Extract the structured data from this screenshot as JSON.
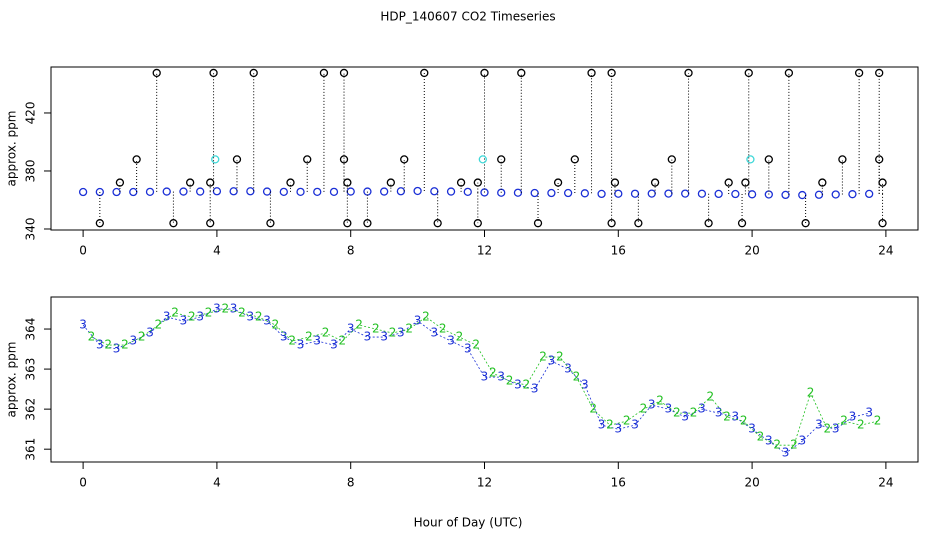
{
  "chart_data": [
    {
      "type": "scatter",
      "title": "HDP_140607  CO2 Timeseries",
      "ylabel": "approx. ppm",
      "xlim": [
        -0.96,
        24.96
      ],
      "ylim": [
        339.3,
        451.7
      ],
      "xticks": [
        0,
        4,
        8,
        12,
        16,
        20,
        24
      ],
      "yticks": [
        340,
        380,
        420
      ],
      "series": [
        {
          "color": "#1a2fd6",
          "marker": "circle",
          "x": [
            0,
            0.5,
            1,
            1.5,
            2,
            2.5,
            3,
            3.5,
            4,
            4.5,
            5,
            5.5,
            6,
            6.5,
            7,
            7.5,
            8,
            8.5,
            9,
            9.5,
            10,
            10.5,
            11,
            11.5,
            12,
            12.5,
            13,
            13.5,
            14,
            14.5,
            15,
            15.5,
            16,
            16.5,
            17,
            17.5,
            18,
            18.5,
            19,
            19.5,
            20,
            20.5,
            21,
            21.5,
            22,
            22.5,
            23,
            23.5
          ],
          "values": [
            365.5,
            365.5,
            365.5,
            365.5,
            365.6,
            365.8,
            365.8,
            365.8,
            366,
            366,
            366,
            365.8,
            365.6,
            365.6,
            365.6,
            365.6,
            365.8,
            365.8,
            365.8,
            366,
            366.2,
            366,
            365.8,
            365.6,
            365.2,
            365,
            365,
            364.8,
            364.8,
            364.8,
            364.6,
            364.2,
            364.3,
            364.3,
            364.4,
            364.4,
            364.4,
            364.3,
            364.2,
            364.1,
            363.9,
            363.8,
            363.5,
            363.4,
            363.6,
            363.8,
            364,
            364.2
          ]
        },
        {
          "color": "#000000",
          "marker": "ring",
          "x": [
            2.2,
            3.9,
            5.1,
            7.2,
            7.8,
            10.2,
            12.0,
            13.1,
            15.2,
            15.8,
            18.1,
            19.9,
            21.1,
            23.2,
            23.8,
            0.5,
            2.7,
            3.8,
            5.6,
            7.9,
            8.5,
            10.6,
            11.8,
            13.6,
            15.8,
            16.6,
            18.7,
            19.7,
            21.6,
            23.9,
            1.6,
            4.6,
            6.7,
            7.8,
            9.6,
            12.5,
            14.7,
            17.6,
            20.5,
            22.7,
            23.8,
            1.1,
            3.2,
            3.8,
            6.2,
            7.9,
            9.2,
            11.3,
            11.8,
            14.2,
            15.9,
            17.1,
            19.3,
            19.8,
            22.1,
            23.9
          ],
          "values": [
            447.6,
            447.6,
            447.6,
            447.6,
            447.6,
            447.6,
            447.6,
            447.6,
            447.6,
            447.6,
            447.6,
            447.6,
            447.6,
            447.6,
            447.6,
            344,
            344,
            344,
            344,
            344,
            344,
            344,
            344,
            344,
            344,
            344,
            344,
            344,
            344,
            344,
            388,
            388,
            388,
            388,
            388,
            388,
            388,
            388,
            388,
            388,
            388,
            372,
            372,
            372,
            372,
            372,
            372,
            372,
            372,
            372,
            372,
            372,
            372,
            372,
            372,
            372
          ]
        },
        {
          "color": "#3fd8d8",
          "marker": "circle",
          "x": [
            3.95,
            11.95,
            19.95
          ],
          "values": [
            388,
            388,
            388
          ]
        }
      ]
    },
    {
      "type": "scatter",
      "ylabel": "approx. ppm",
      "xlabel": "Hour of Day (UTC)",
      "xlim": [
        -0.96,
        24.96
      ],
      "ylim": [
        360.68,
        364.8
      ],
      "xticks": [
        0,
        4,
        8,
        12,
        16,
        20,
        24
      ],
      "yticks": [
        361,
        362,
        363,
        364
      ],
      "series": [
        {
          "color": "#1a2fd6",
          "marker": "3",
          "x": [
            0,
            0.5,
            1,
            1.5,
            2,
            2.5,
            3,
            3.5,
            4,
            4.5,
            5,
            5.5,
            6,
            6.5,
            7,
            7.5,
            8,
            8.5,
            9,
            9.5,
            10,
            10.5,
            11,
            11.5,
            12,
            12.5,
            13,
            13.5,
            14,
            14.5,
            15,
            15.5,
            16,
            16.5,
            17,
            17.5,
            18,
            18.5,
            19,
            19.5,
            20,
            20.5,
            21,
            21.5,
            22,
            22.5,
            23,
            23.5
          ],
          "values": [
            364.1,
            363.6,
            363.5,
            363.7,
            363.9,
            364.3,
            364.2,
            364.3,
            364.5,
            364.5,
            364.3,
            364.2,
            363.8,
            363.6,
            363.7,
            363.6,
            364,
            363.8,
            363.8,
            363.9,
            364.2,
            363.9,
            363.7,
            363.5,
            362.8,
            362.8,
            362.6,
            362.5,
            363.2,
            363,
            362.6,
            361.6,
            361.5,
            361.6,
            362.1,
            362,
            361.8,
            362,
            361.9,
            361.8,
            361.5,
            361.2,
            360.9,
            361.2,
            361.6,
            361.5,
            361.8,
            361.9
          ]
        },
        {
          "color": "#22c022",
          "marker": "2",
          "x": [
            0.25,
            0.75,
            1.25,
            1.75,
            2.25,
            2.75,
            3.25,
            3.75,
            4.25,
            4.75,
            5.25,
            5.75,
            6.25,
            6.75,
            7.25,
            7.75,
            8.25,
            8.75,
            9.25,
            9.75,
            10.25,
            10.75,
            11.25,
            11.75,
            12.25,
            12.75,
            13.25,
            13.75,
            14.25,
            14.75,
            15.25,
            15.75,
            16.25,
            16.75,
            17.25,
            17.75,
            18.25,
            18.75,
            19.25,
            19.75,
            20.25,
            20.75,
            21.25,
            21.75,
            22.25,
            22.75,
            23.25,
            23.75
          ],
          "values": [
            363.8,
            363.6,
            363.6,
            363.8,
            364.1,
            364.4,
            364.3,
            364.4,
            364.5,
            364.4,
            364.3,
            364.1,
            363.7,
            363.8,
            363.9,
            363.7,
            364.1,
            364,
            363.9,
            364,
            364.3,
            364,
            363.8,
            363.6,
            362.9,
            362.7,
            362.6,
            363.3,
            363.3,
            362.8,
            362,
            361.6,
            361.7,
            362,
            362.2,
            361.9,
            361.9,
            362.3,
            361.8,
            361.7,
            361.3,
            361.1,
            361.1,
            362.4,
            361.5,
            361.7,
            361.6,
            361.7
          ]
        }
      ]
    }
  ]
}
